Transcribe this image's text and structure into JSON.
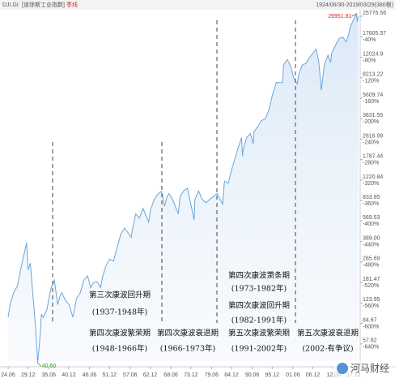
{
  "chart_data": {
    "type": "line",
    "title": "DJI.GI",
    "subtitle": "[道琼斯工业指数]",
    "period_label": "季线",
    "range_label": "1924/06/30-2019/03/29(380根)",
    "log_scale": true,
    "xlim": [
      1922.3,
      2019.7
    ],
    "ylim": [
      42,
      29090
    ],
    "xticks": [
      {
        "value": 1924.5,
        "label": "24.06"
      },
      {
        "value": 1929.9,
        "label": "29.12"
      },
      {
        "value": 1935.5,
        "label": "35.06"
      },
      {
        "value": 1940.9,
        "label": "40.12"
      },
      {
        "value": 1946.5,
        "label": "46.06"
      },
      {
        "value": 1951.9,
        "label": "51.12"
      },
      {
        "value": 1957.5,
        "label": "57.06"
      },
      {
        "value": 1962.9,
        "label": "62.12"
      },
      {
        "value": 1968.5,
        "label": "68.06"
      },
      {
        "value": 1973.9,
        "label": "73.12"
      },
      {
        "value": 1979.5,
        "label": "79.06"
      },
      {
        "value": 1984.9,
        "label": "84.12"
      },
      {
        "value": 1990.5,
        "label": "90.06"
      },
      {
        "value": 1995.9,
        "label": "95.12"
      },
      {
        "value": 2001.5,
        "label": "01.06"
      },
      {
        "value": 2006.9,
        "label": "06.12"
      },
      {
        "value": 2012.5,
        "label": "12.06"
      },
      {
        "value": 2017.9,
        "label": "17.12"
      }
    ],
    "yticks": [
      25776.56,
      17605.57,
      12024.9,
      8213.22,
      5609.74,
      3831.55,
      2616.99,
      1787.44,
      1220.84,
      833.85,
      569.53,
      {
        "value": 389,
        "label": "389.00"
      },
      265.69,
      181.47,
      123.95,
      84.67,
      57.82
    ],
    "ytick_sublabels": [
      null,
      "-40%",
      "-80%",
      "-120%",
      "-160%",
      "-200%",
      "-240%",
      "-280%",
      "-320%",
      "-360%",
      "-400%",
      "-440%",
      "-480%",
      "-520%",
      "-560%",
      "-600%",
      "-640%"
    ],
    "series": [
      {
        "name": "DJI.GI",
        "color": "#6aa6dc",
        "x": [
          1924.5,
          1925,
          1926,
          1927,
          1928,
          1929.5,
          1929.9,
          1930.5,
          1931,
          1931.9,
          1932.5,
          1933,
          1933.5,
          1934,
          1935,
          1936,
          1937,
          1937.9,
          1938.5,
          1939,
          1940,
          1941,
          1942,
          1943,
          1944,
          1945,
          1946,
          1946.8,
          1947.5,
          1948.5,
          1949.5,
          1950,
          1951,
          1952,
          1953,
          1954,
          1955,
          1956,
          1957.8,
          1958,
          1959,
          1960,
          1961,
          1962.5,
          1963,
          1964,
          1965,
          1966,
          1966.8,
          1967.5,
          1968,
          1969,
          1970.5,
          1971,
          1972,
          1973,
          1974.8,
          1975,
          1976,
          1977,
          1978,
          1979,
          1980,
          1981,
          1982.5,
          1983,
          1984,
          1985,
          1986,
          1987.6,
          1987.9,
          1988,
          1989,
          1990,
          1990.8,
          1991,
          1992,
          1993,
          1994,
          1995,
          1996,
          1997,
          1998.7,
          1999,
          2000,
          2001,
          2001.7,
          2002.7,
          2003,
          2004,
          2005,
          2006,
          2007.8,
          2008.5,
          2009.2,
          2010,
          2011,
          2011.7,
          2012,
          2013,
          2014,
          2015,
          2015.9,
          2016.5,
          2017,
          2018,
          2018.7,
          2018.9,
          2019.2
        ],
        "values": [
          95,
          120,
          150,
          170,
          240,
          381,
          230,
          260,
          170,
          80,
          40.6,
          60,
          100,
          95,
          110,
          160,
          190,
          120,
          140,
          150,
          130,
          120,
          95,
          135,
          150,
          190,
          205,
          165,
          180,
          185,
          165,
          200,
          250,
          280,
          270,
          350,
          450,
          500,
          420,
          470,
          650,
          600,
          720,
          560,
          700,
          850,
          940,
          990,
          750,
          900,
          950,
          850,
          650,
          900,
          1000,
          1050,
          580,
          850,
          1000,
          850,
          800,
          850,
          900,
          950,
          780,
          1200,
          1150,
          1500,
          1900,
          2700,
          1900,
          2100,
          2700,
          2900,
          2400,
          3000,
          3300,
          3700,
          3800,
          4500,
          6000,
          7500,
          7500,
          10500,
          11500,
          10000,
          8200,
          7300,
          8500,
          10400,
          10700,
          12000,
          14000,
          11000,
          6500,
          10500,
          12500,
          10900,
          13000,
          15000,
          17000,
          17500,
          16000,
          18000,
          21000,
          24500,
          26951.81,
          23300,
          25900
        ]
      }
    ],
    "annotations": [
      {
        "x": 2018.7,
        "value": 26951.81,
        "label": "26951.81",
        "color": "#e02020"
      },
      {
        "x": 1932.5,
        "value": 40.6,
        "label": "40.60",
        "color": "#20a020"
      }
    ],
    "phases": [
      {
        "label": "第三次康波回升期",
        "period": "(1937-1948年)"
      },
      {
        "label": "第四次康波繁荣期",
        "period": "(1948-1966年)"
      },
      {
        "label": "第四次康波衰退期",
        "period": "(1966-1973年)"
      },
      {
        "label": "第四次康波萧条期",
        "period": "(1973-1982年)"
      },
      {
        "label": "第四次康波回升期",
        "period": "(1982-1991年)"
      },
      {
        "label": "第五次康波繁荣期",
        "period": "(1991-2002年)"
      },
      {
        "label": "第五次康波衰退期",
        "period": "(2002-有争议)"
      }
    ],
    "watermark": "河马财经"
  }
}
